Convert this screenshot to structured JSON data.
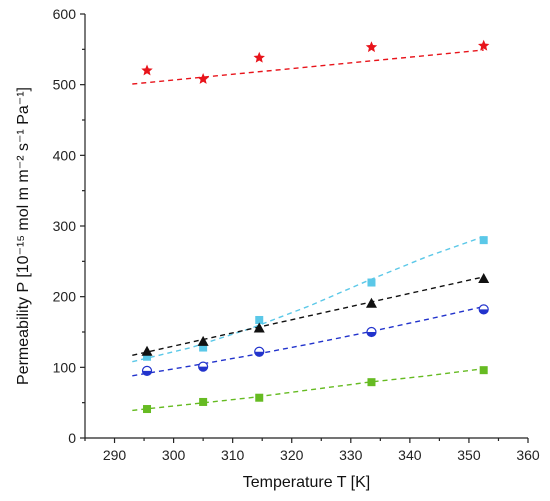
{
  "chart_data": {
    "type": "scatter",
    "xlabel": "Temperature T [K]",
    "ylabel": "Permeability P [10⁻¹⁵ mol m m⁻² s⁻¹ Pa⁻¹]",
    "xlim": [
      285,
      360
    ],
    "ylim": [
      0,
      600
    ],
    "x_ticks": [
      "290",
      "300",
      "310",
      "320",
      "330",
      "340",
      "350",
      "360"
    ],
    "y_ticks": [
      "0",
      "100",
      "200",
      "300",
      "400",
      "500",
      "600"
    ],
    "grid": false,
    "legend": "none",
    "series": [
      {
        "marker": "star",
        "color": "#e8141b",
        "points": [
          [
            295.5,
            520
          ],
          [
            305,
            508
          ],
          [
            314.5,
            538
          ],
          [
            333.5,
            553
          ],
          [
            352.5,
            555
          ]
        ],
        "fit": [
          [
            293,
            501
          ],
          [
            352.5,
            549
          ]
        ]
      },
      {
        "marker": "square",
        "color": "#5bc8e8",
        "points": [
          [
            295.5,
            115
          ],
          [
            305,
            128
          ],
          [
            314.5,
            167
          ],
          [
            333.5,
            220
          ],
          [
            352.5,
            280
          ]
        ],
        "fit": [
          [
            293,
            108
          ],
          [
            303,
            128
          ],
          [
            313,
            155
          ],
          [
            323,
            187
          ],
          [
            333,
            223
          ],
          [
            343,
            257
          ],
          [
            352.5,
            285
          ]
        ]
      },
      {
        "marker": "triangle",
        "color": "#111111",
        "points": [
          [
            295.5,
            122
          ],
          [
            305,
            136
          ],
          [
            314.5,
            155
          ],
          [
            333.5,
            190
          ],
          [
            352.5,
            225
          ]
        ],
        "fit": [
          [
            293,
            117
          ],
          [
            352.5,
            228
          ]
        ]
      },
      {
        "marker": "half-circle",
        "color": "#2233cc",
        "points": [
          [
            295.5,
            95
          ],
          [
            305,
            101
          ],
          [
            314.5,
            122
          ],
          [
            333.5,
            150
          ],
          [
            352.5,
            182
          ]
        ],
        "fit": [
          [
            293,
            88
          ],
          [
            303,
            102
          ],
          [
            313,
            117
          ],
          [
            323,
            133
          ],
          [
            333,
            150
          ],
          [
            343,
            168
          ],
          [
            352.5,
            186
          ]
        ]
      },
      {
        "marker": "square",
        "color": "#66bb22",
        "points": [
          [
            295.5,
            41
          ],
          [
            305,
            51
          ],
          [
            314.5,
            57
          ],
          [
            333.5,
            79
          ],
          [
            352.5,
            96
          ]
        ],
        "fit": [
          [
            293,
            39
          ],
          [
            303,
            48
          ],
          [
            313,
            57
          ],
          [
            323,
            68
          ],
          [
            333,
            79
          ],
          [
            343,
            88
          ],
          [
            352.5,
            98
          ]
        ]
      }
    ]
  }
}
